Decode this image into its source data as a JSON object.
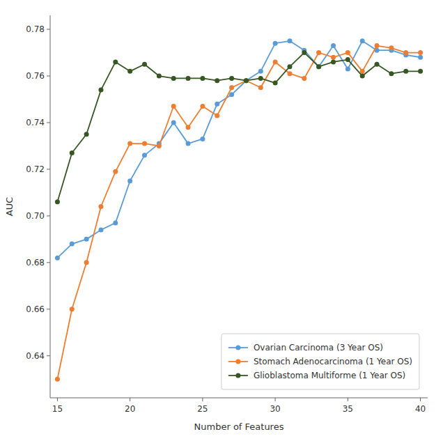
{
  "chart_data": {
    "type": "line",
    "xlabel": "Number of Features",
    "ylabel": "AUC",
    "x": [
      15,
      16,
      17,
      18,
      19,
      20,
      21,
      22,
      23,
      24,
      25,
      26,
      27,
      28,
      29,
      30,
      31,
      32,
      33,
      34,
      35,
      36,
      37,
      38,
      39,
      40
    ],
    "series": [
      {
        "name": "Ovarian Carcinoma (3 Year OS)",
        "color": "#5B9BD5",
        "marker": "circle",
        "values": [
          0.682,
          0.688,
          0.69,
          0.694,
          0.697,
          0.715,
          0.726,
          0.731,
          0.74,
          0.731,
          0.733,
          0.748,
          0.752,
          0.758,
          0.762,
          0.774,
          0.775,
          0.771,
          0.764,
          0.773,
          0.763,
          0.775,
          0.771,
          0.771,
          0.769,
          0.768
        ]
      },
      {
        "name": "Stomach Adenocarcinoma (1 Year OS)",
        "color": "#ED7D31",
        "marker": "circle",
        "values": [
          0.63,
          0.66,
          0.68,
          0.704,
          0.719,
          0.731,
          0.731,
          0.73,
          0.747,
          0.738,
          0.747,
          0.743,
          0.755,
          0.758,
          0.755,
          0.766,
          0.761,
          0.759,
          0.77,
          0.768,
          0.77,
          0.762,
          0.773,
          0.772,
          0.77,
          0.77
        ]
      },
      {
        "name": "Glioblastoma Multiforme (1 Year OS)",
        "color": "#375623",
        "marker": "circle",
        "values": [
          0.706,
          0.727,
          0.735,
          0.754,
          0.766,
          0.762,
          0.765,
          0.76,
          0.759,
          0.759,
          0.759,
          0.758,
          0.759,
          0.758,
          0.759,
          0.757,
          0.764,
          0.77,
          0.764,
          0.766,
          0.767,
          0.76,
          0.765,
          0.761,
          0.762,
          0.762
        ]
      }
    ],
    "xlim": [
      14.5,
      40.5
    ],
    "ylim": [
      0.622,
      0.786
    ],
    "xticks": [
      15,
      20,
      25,
      30,
      35,
      40
    ],
    "yticks": [
      0.64,
      0.66,
      0.68,
      {
        "value": 0.7,
        "label": "0.70"
      },
      0.72,
      0.74,
      0.76,
      0.78
    ],
    "grid": false,
    "legend": "lower right"
  }
}
